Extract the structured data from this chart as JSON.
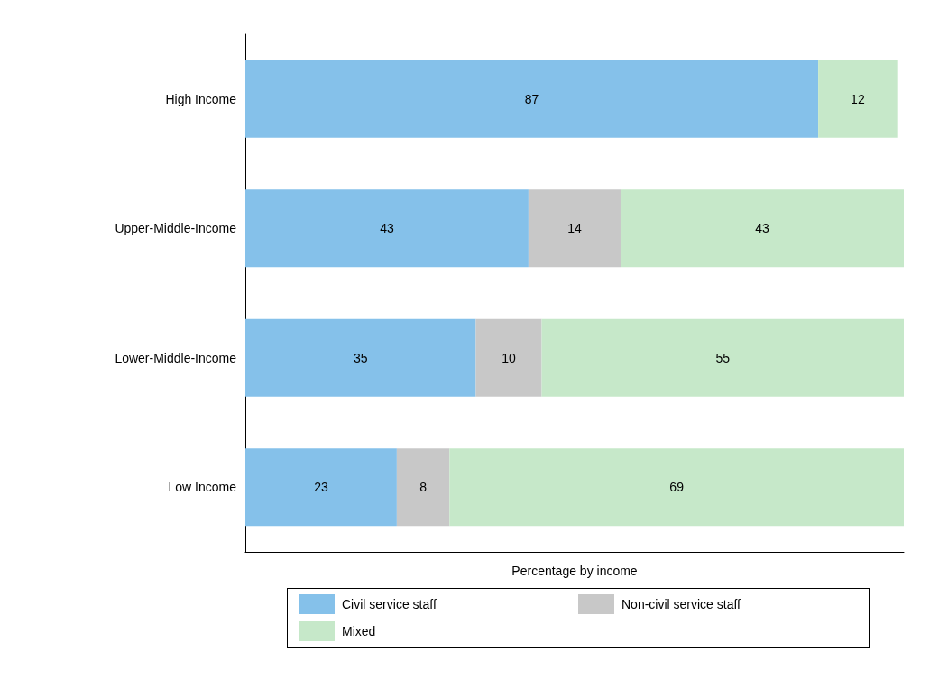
{
  "chart_data": {
    "type": "bar",
    "orientation": "horizontal",
    "stacked": true,
    "categories": [
      "High Income",
      "Upper-Middle-Income",
      "Lower-Middle-Income",
      "Low Income"
    ],
    "series": [
      {
        "name": "Civil service staff",
        "color": "#85c1ea",
        "values": [
          87,
          43,
          35,
          23
        ]
      },
      {
        "name": "Non-civil service staff",
        "color": "#c8c8c8",
        "values": [
          null,
          14,
          10,
          8
        ]
      },
      {
        "name": "Mixed",
        "color": "#c6e8c9",
        "values": [
          12,
          43,
          55,
          69
        ]
      }
    ],
    "xlabel": "Percentage by income",
    "xlim": [
      0,
      100
    ],
    "tick_labels": "y",
    "data_labels": true,
    "legend": "bottom"
  }
}
